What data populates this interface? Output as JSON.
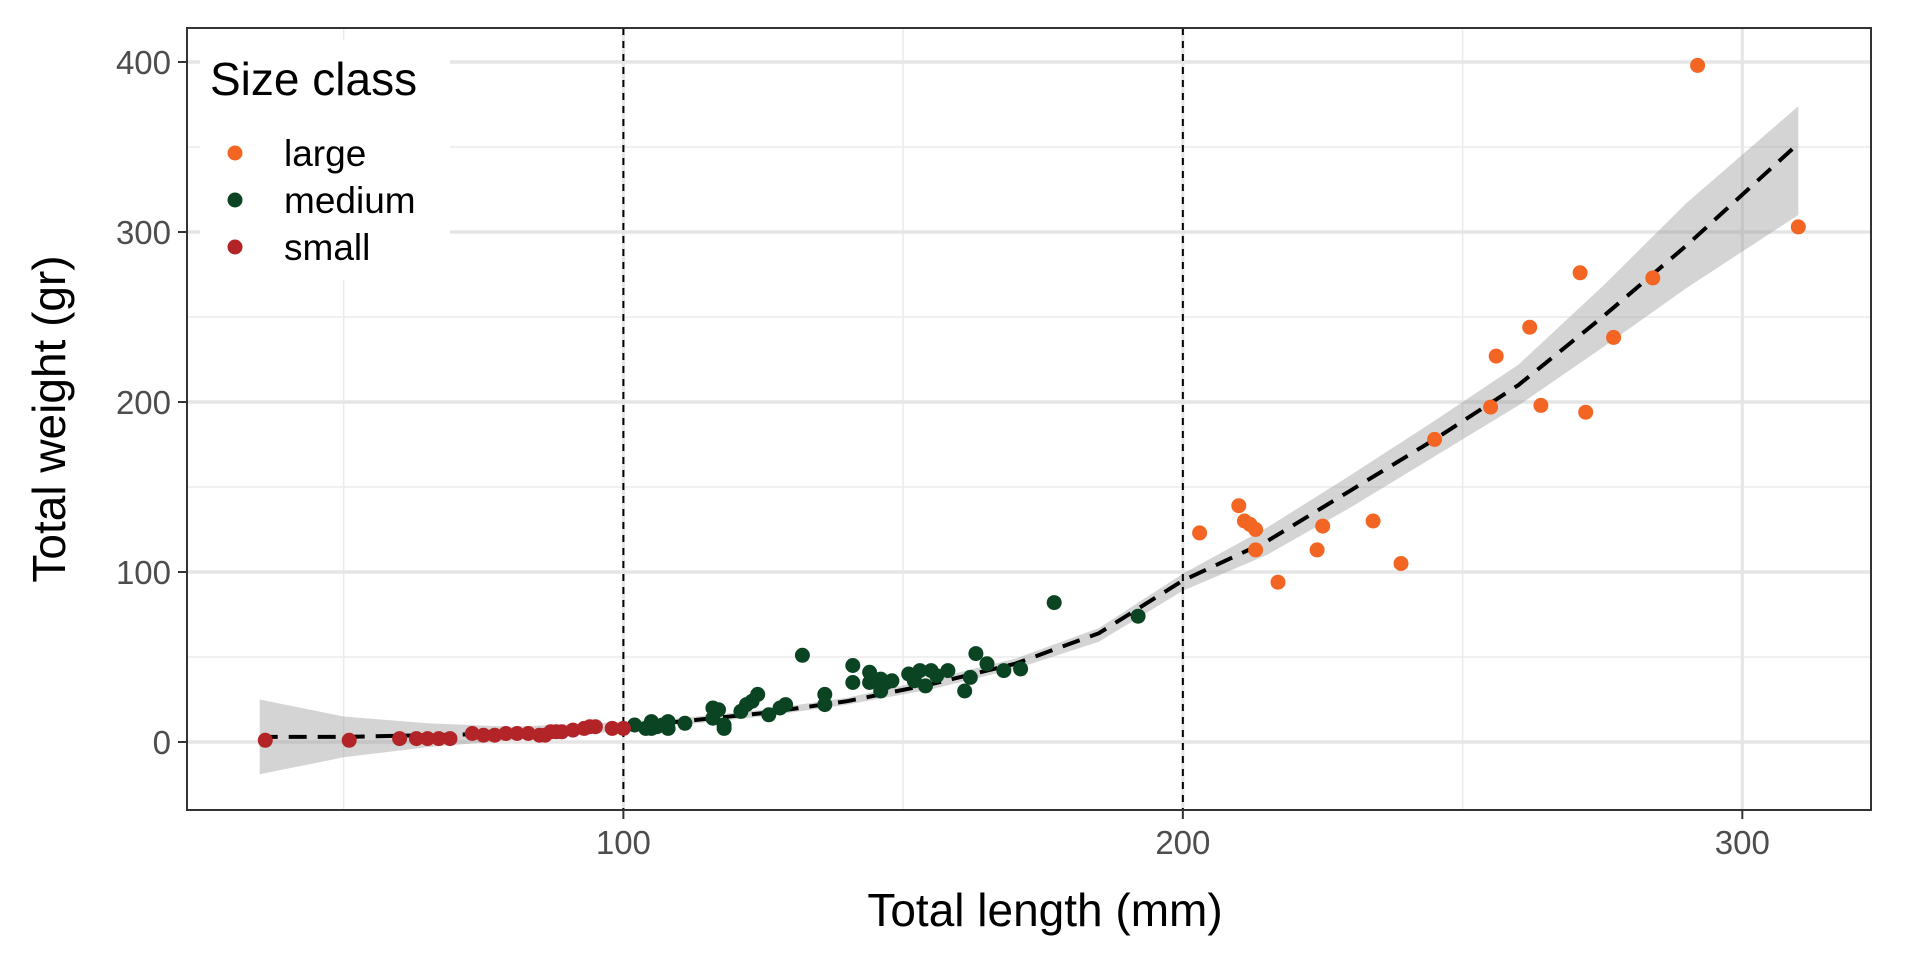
{
  "chart_data": {
    "type": "scatter",
    "xlabel": "Total length (mm)",
    "ylabel": "Total weight (gr)",
    "xlim": [
      22,
      323
    ],
    "ylim": [
      -40,
      420
    ],
    "x_ticks": [
      100,
      200,
      300
    ],
    "x_ticks_minor": [
      50,
      150,
      250
    ],
    "y_ticks": [
      0,
      100,
      200,
      300,
      400
    ],
    "y_ticks_minor": [
      50,
      150,
      250,
      350
    ],
    "grid": true,
    "vlines": [
      100,
      200
    ],
    "legend": {
      "title": "Size class",
      "position": "top-left",
      "entries": [
        "large",
        "medium",
        "small"
      ]
    },
    "fit": {
      "style": "dashed",
      "band": "confidence",
      "x": [
        35,
        50,
        65,
        80,
        95,
        100,
        110,
        125,
        140,
        155,
        170,
        185,
        200,
        215,
        230,
        245,
        260,
        275,
        290,
        310
      ],
      "y": [
        3,
        3,
        4,
        5,
        8,
        9,
        12,
        17,
        24,
        34,
        46,
        64,
        95,
        118,
        148,
        178,
        210,
        250,
        292,
        352
      ],
      "lower": [
        -19,
        -9,
        -3,
        1,
        5,
        7,
        10,
        15,
        22,
        31,
        43,
        59,
        89,
        110,
        138,
        168,
        198,
        232,
        267,
        310
      ],
      "upper": [
        25,
        15,
        11,
        9,
        11,
        12,
        14,
        19,
        26,
        37,
        49,
        67,
        99,
        126,
        157,
        189,
        222,
        268,
        317,
        374
      ]
    },
    "series": [
      {
        "name": "large",
        "color": "#F26522",
        "x": [
          203,
          210,
          211,
          212,
          213,
          213,
          217,
          224,
          225,
          234,
          239,
          245,
          255,
          256,
          262,
          264,
          271,
          272,
          277,
          284,
          292,
          310
        ],
        "y": [
          123,
          139,
          130,
          128,
          125,
          113,
          94,
          113,
          127,
          130,
          105,
          178,
          197,
          227,
          244,
          198,
          276,
          194,
          238,
          273,
          398,
          303
        ]
      },
      {
        "name": "medium",
        "color": "#0B4423",
        "x": [
          102,
          104,
          105,
          105,
          106,
          107,
          108,
          108,
          111,
          116,
          116,
          117,
          118,
          118,
          121,
          122,
          123,
          124,
          126,
          128,
          129,
          132,
          136,
          136,
          141,
          141,
          144,
          144,
          146,
          146,
          147,
          148,
          151,
          152,
          152,
          153,
          154,
          155,
          156,
          158,
          161,
          162,
          163,
          165,
          168,
          171,
          177,
          192
        ],
        "y": [
          10,
          8,
          8,
          12,
          9,
          10,
          8,
          12,
          11,
          14,
          20,
          19,
          10,
          8,
          18,
          22,
          24,
          28,
          16,
          20,
          22,
          51,
          28,
          22,
          45,
          35,
          35,
          41,
          30,
          37,
          35,
          36,
          40,
          36,
          38,
          42,
          33,
          42,
          39,
          42,
          30,
          38,
          52,
          46,
          42,
          43,
          82,
          74
        ],
        "note_color_hex": "#0B4423"
      },
      {
        "name": "small",
        "color": "#B22427",
        "x": [
          36,
          51,
          60,
          63,
          65,
          67,
          69,
          73,
          75,
          77,
          79,
          81,
          83,
          85,
          86,
          87,
          88,
          89,
          91,
          93,
          94,
          95,
          98,
          100
        ],
        "y": [
          1,
          1,
          2,
          2,
          2,
          2,
          2,
          5,
          4,
          4,
          5,
          5,
          5,
          4,
          4,
          6,
          6,
          6,
          7,
          8,
          9,
          9,
          8,
          8
        ]
      }
    ]
  }
}
